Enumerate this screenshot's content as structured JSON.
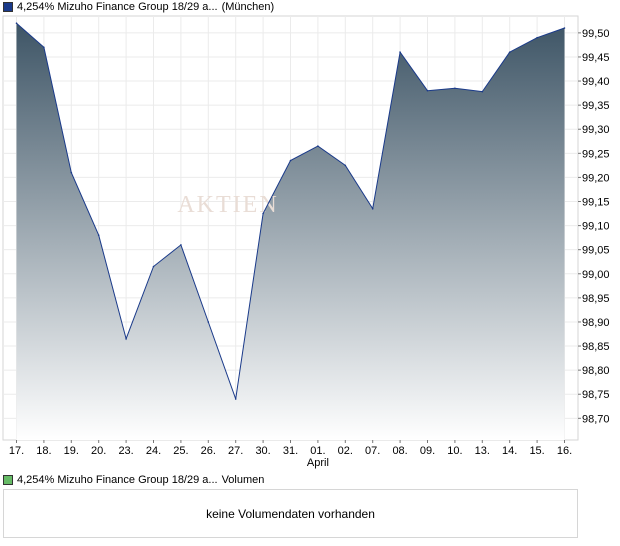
{
  "legend": {
    "price_name": "4,254% Mizuho Finance Group 18/29 a...",
    "price_venue": "(München)",
    "price_color": "#1a3a8a",
    "volume_name": "4,254% Mizuho Finance Group 18/29 a...",
    "volume_label": "Volumen",
    "volume_color": "#66bb66"
  },
  "watermark": "AKTIEN",
  "volume": {
    "message": "keine Volumendaten vorhanden"
  },
  "chart_data": {
    "type": "area",
    "categories": [
      "17.",
      "18.",
      "19.",
      "20.",
      "23.",
      "24.",
      "25.",
      "26.",
      "27.",
      "30.",
      "31.",
      "01.",
      "02.",
      "07.",
      "08.",
      "09.",
      "10.",
      "13.",
      "14.",
      "15.",
      "16."
    ],
    "month_label": {
      "at": "01.",
      "text": "April"
    },
    "series": [
      {
        "values": [
          99.52,
          99.47,
          99.21,
          99.08,
          98.865,
          99.015,
          99.06,
          98.9,
          98.74,
          99.125,
          99.235,
          99.265,
          99.225,
          99.135,
          99.46,
          99.38,
          99.385,
          99.378,
          99.46,
          99.49,
          99.51
        ]
      }
    ],
    "y_ticks": [
      "99,50",
      "99,45",
      "99,40",
      "99,35",
      "99,30",
      "99,25",
      "99,20",
      "99,15",
      "99,10",
      "99,05",
      "99,00",
      "98,95",
      "98,90",
      "98,85",
      "98,80",
      "98,75",
      "98,70"
    ],
    "ylim": [
      98.655,
      99.535
    ],
    "grid": true,
    "line_color": "#1a3a8a",
    "fill_top_color": "#3e5566",
    "fill_bottom_color": "#ffffff"
  }
}
